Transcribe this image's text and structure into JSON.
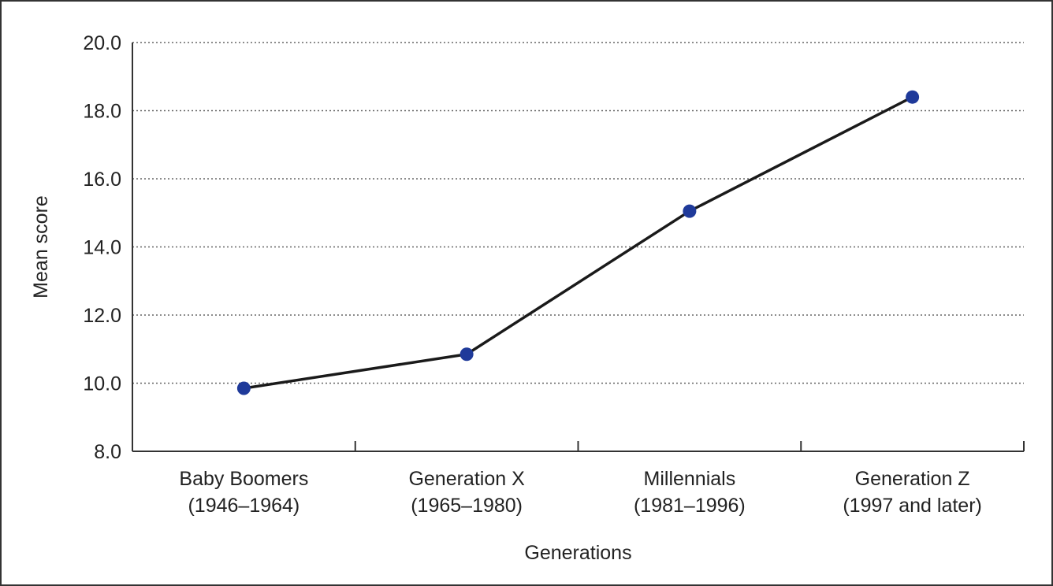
{
  "chart_data": {
    "type": "line",
    "title": "",
    "xlabel": "Generations",
    "ylabel": "Mean score",
    "ylim": [
      8.0,
      20.0
    ],
    "yticks": [
      "8.0",
      "10.0",
      "12.0",
      "14.0",
      "16.0",
      "18.0",
      "20.0"
    ],
    "grid": true,
    "categories": [
      {
        "line1": "Baby Boomers",
        "line2": "(1946–1964)"
      },
      {
        "line1": "Generation X",
        "line2": "(1965–1980)"
      },
      {
        "line1": "Millennials",
        "line2": "(1981–1996)"
      },
      {
        "line1": "Generation Z",
        "line2": "(1997 and later)"
      }
    ],
    "values": [
      9.85,
      10.85,
      15.05,
      18.4
    ],
    "colors": {
      "line": "#1a1a1a",
      "marker": "#1f3a9a",
      "grid": "#666666",
      "axis": "#333333"
    }
  }
}
